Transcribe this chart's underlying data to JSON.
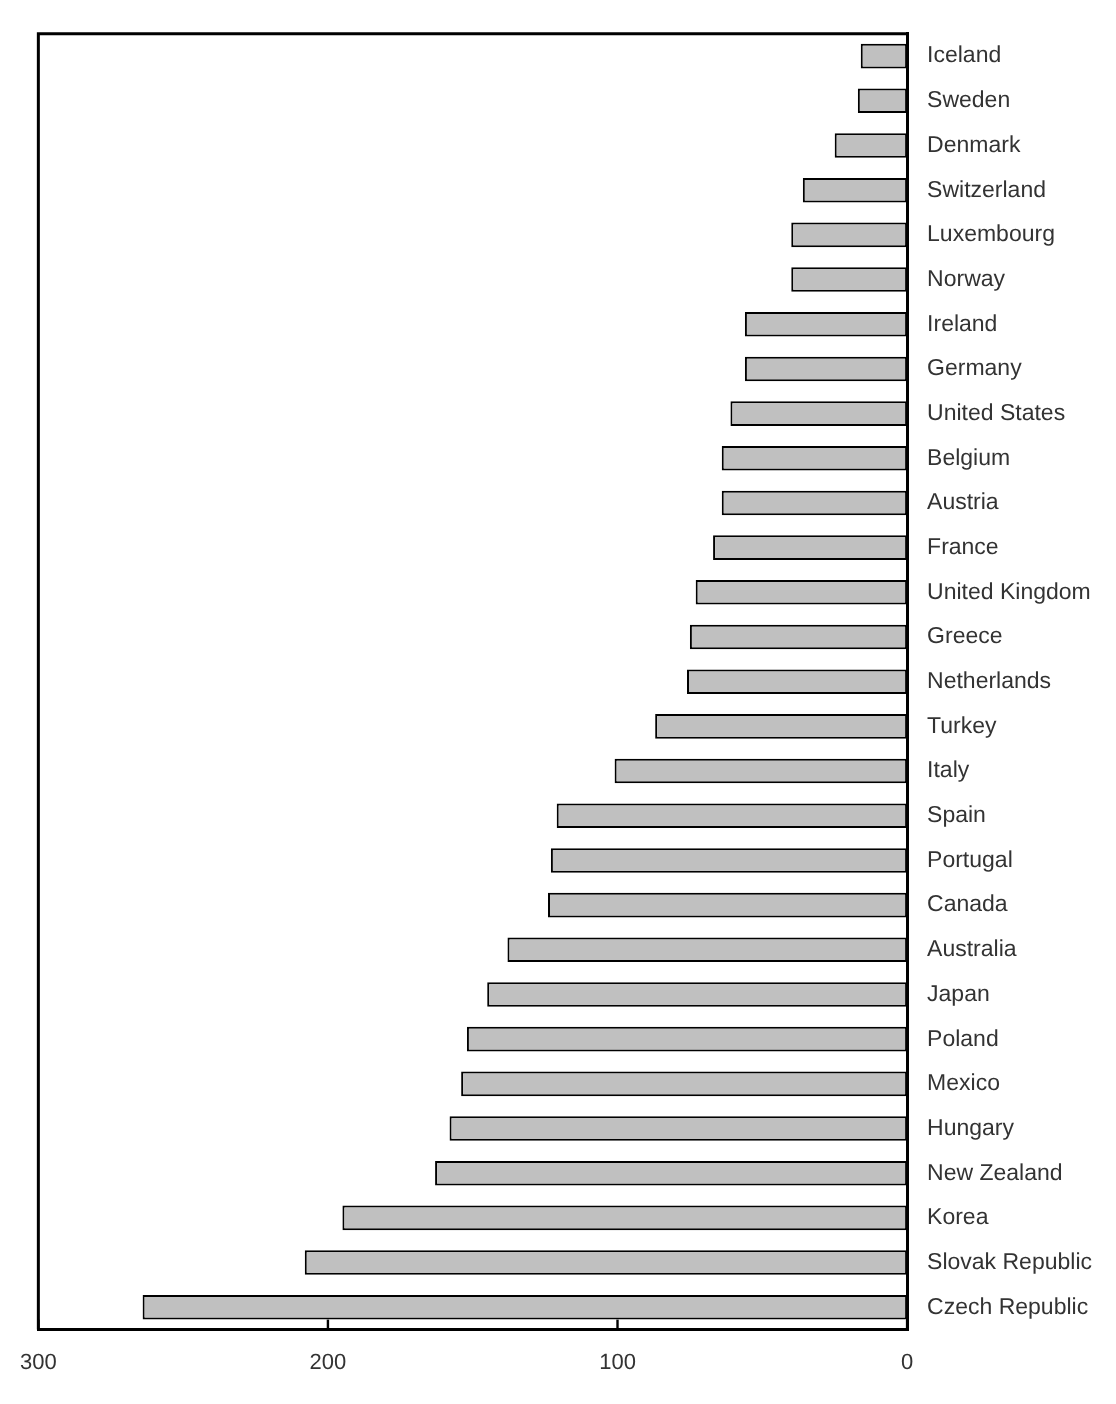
{
  "chart_data": {
    "type": "bar",
    "orientation": "horizontal",
    "categories": [
      "Iceland",
      "Sweden",
      "Denmark",
      "Switzerland",
      "Luxembourg",
      "Norway",
      "Ireland",
      "Germany",
      "United States",
      "Belgium",
      "Austria",
      "France",
      "United Kingdom",
      "Greece",
      "Netherlands",
      "Turkey",
      "Italy",
      "Spain",
      "Portugal",
      "Canada",
      "Australia",
      "Japan",
      "Poland",
      "Mexico",
      "Hungary",
      "New Zealand",
      "Korea",
      "Slovak Republic",
      "Czech Republic"
    ],
    "values": [
      16,
      17,
      25,
      36,
      40,
      40,
      56,
      56,
      61,
      64,
      64,
      67,
      73,
      75,
      76,
      87,
      101,
      121,
      123,
      124,
      138,
      145,
      152,
      154,
      158,
      163,
      195,
      208,
      264
    ],
    "color": "#c0c0c0",
    "xlim": [
      300,
      0
    ],
    "xticks": [
      300,
      200,
      100,
      0
    ],
    "grid": false,
    "legend": false
  }
}
